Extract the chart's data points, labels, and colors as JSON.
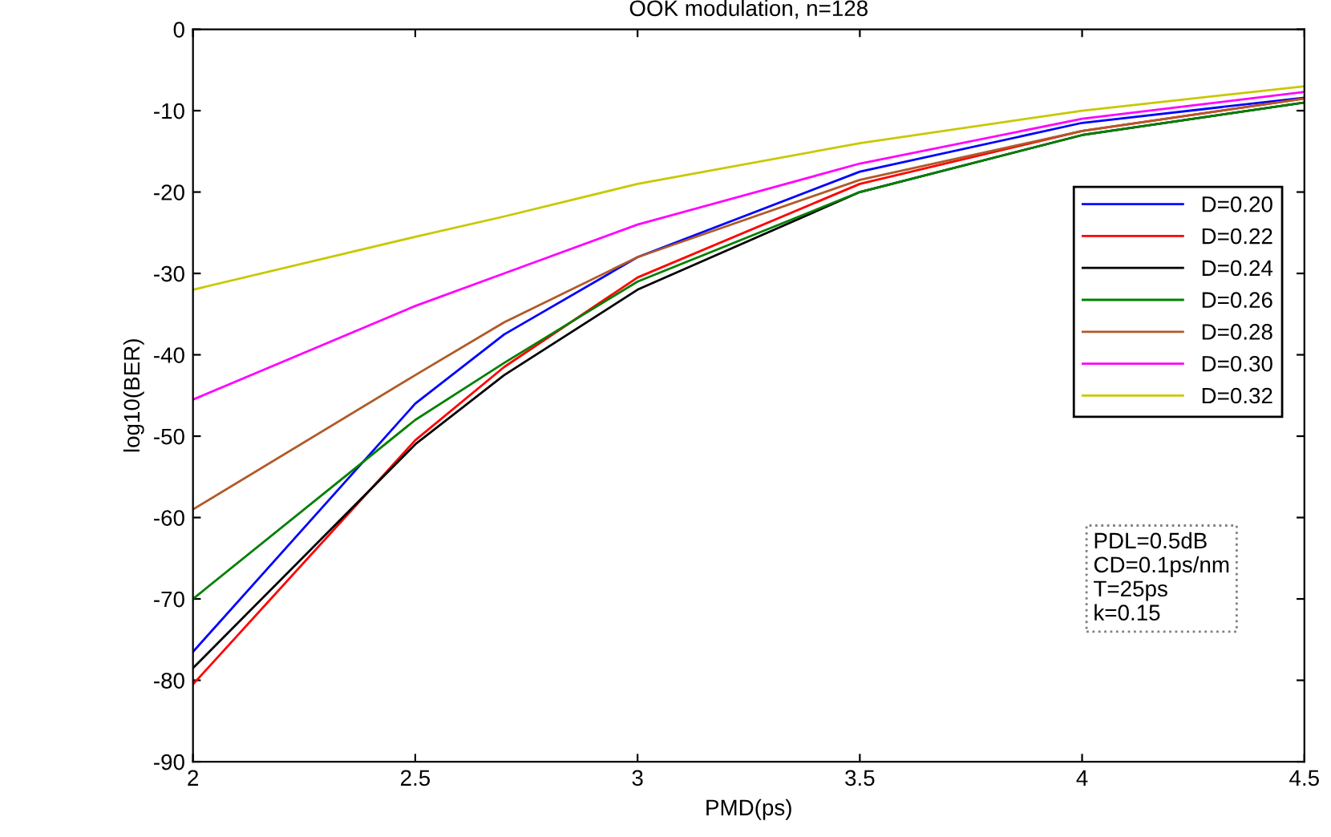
{
  "chart_data": {
    "type": "line",
    "title": "OOK modulation, n=128",
    "xlabel": "PMD(ps)",
    "ylabel": "log10(BER)",
    "x": [
      2,
      2.5,
      2.7,
      3,
      3.5,
      4,
      4.5
    ],
    "series": [
      {
        "name": "D=0.20",
        "color": "#0000ff",
        "values": [
          -76.5,
          -46,
          -37.5,
          -28,
          -17.5,
          -11.5,
          -8.4
        ]
      },
      {
        "name": "D=0.22",
        "color": "#ff0000",
        "values": [
          -80.5,
          -50.5,
          -41.5,
          -30.5,
          -19,
          -12.5,
          -8.5
        ]
      },
      {
        "name": "D=0.24",
        "color": "#000000",
        "values": [
          -78.5,
          -51,
          -42.5,
          -32,
          -20,
          -13,
          -9
        ]
      },
      {
        "name": "D=0.26",
        "color": "#008000",
        "values": [
          -70,
          -48,
          -41,
          -31,
          -20,
          -13,
          -9
        ]
      },
      {
        "name": "D=0.28",
        "color": "#b05a28",
        "values": [
          -59,
          -42.5,
          -36,
          -28,
          -18.5,
          -12.5,
          -8.5
        ]
      },
      {
        "name": "D=0.30",
        "color": "#ff00ff",
        "values": [
          -45.5,
          -34,
          -30,
          -24,
          -16.5,
          -11,
          -7.7
        ]
      },
      {
        "name": "D=0.32",
        "color": "#c8c800",
        "values": [
          -32,
          -25.5,
          -23,
          -19,
          -14,
          -10,
          -7
        ]
      }
    ],
    "xlim": [
      2,
      4.5
    ],
    "xticks": [
      2,
      2.5,
      3,
      3.5,
      4,
      4.5
    ],
    "ylim": [
      -90,
      0
    ],
    "yticks": [
      -90,
      -80,
      -70,
      -60,
      -50,
      -40,
      -30,
      -20,
      -10,
      0
    ],
    "grid": false,
    "legend": "right",
    "marker": "none",
    "line_style": "solid",
    "annotations": [
      "PDL=0.5dB\nCD=0.1ps/nm\nT=25ps\nk=0.15"
    ]
  }
}
